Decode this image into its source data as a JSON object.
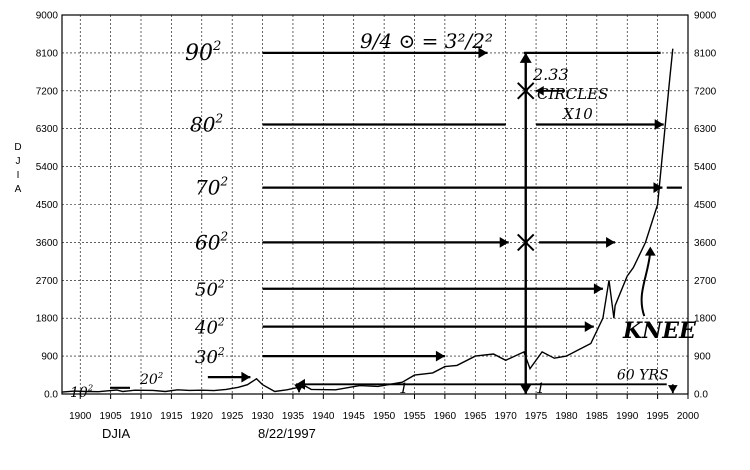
{
  "chart_data": {
    "type": "line",
    "ylabel": "DJIA",
    "xlabel_left": "DJIA",
    "date_label": "8/22/1997",
    "xlim": [
      1897,
      2000
    ],
    "ylim": [
      0,
      9000
    ],
    "yticks": [
      "0.0",
      "900",
      "1800",
      "2700",
      "3600",
      "4500",
      "5400",
      "6300",
      "7200",
      "8100",
      "9000"
    ],
    "xticks": [
      "1900",
      "1905",
      "1910",
      "1915",
      "1920",
      "1925",
      "1930",
      "1935",
      "1940",
      "1945",
      "1950",
      "1955",
      "1960",
      "1965",
      "1970",
      "1975",
      "1980",
      "1985",
      "1990",
      "1995",
      "2000"
    ],
    "grid": true,
    "series": [
      {
        "x": [
          1897,
          1899,
          1901,
          1903,
          1905,
          1906,
          1907,
          1909,
          1912,
          1914,
          1916,
          1918,
          1920,
          1922,
          1924,
          1926,
          1927.5,
          1929,
          1930,
          1932,
          1934,
          1937,
          1938,
          1942,
          1946,
          1949,
          1953,
          1955,
          1958,
          1960,
          1962,
          1965,
          1968,
          1970,
          1973,
          1974,
          1976,
          1978,
          1980,
          1982,
          1984,
          1986,
          1987,
          1987.8,
          1988,
          1990,
          1991,
          1993,
          1995,
          1996,
          1997,
          1997.5
        ],
        "y": [
          45,
          70,
          60,
          55,
          80,
          95,
          60,
          90,
          85,
          60,
          100,
          85,
          90,
          80,
          110,
          160,
          220,
          360,
          220,
          60,
          100,
          190,
          110,
          100,
          200,
          180,
          280,
          450,
          500,
          650,
          680,
          900,
          950,
          800,
          1000,
          600,
          1000,
          850,
          900,
          1050,
          1200,
          1800,
          2700,
          1800,
          2100,
          2800,
          3000,
          3600,
          4500,
          6000,
          7500,
          8200
        ]
      }
    ],
    "annotations": {
      "squares": [
        {
          "base": "10",
          "exp": "2",
          "value": 100
        },
        {
          "base": "20",
          "exp": "2",
          "value": 400
        },
        {
          "base": "30",
          "exp": "2",
          "value": 900
        },
        {
          "base": "40",
          "exp": "2",
          "value": 1600
        },
        {
          "base": "50",
          "exp": "2",
          "value": 2500
        },
        {
          "base": "60",
          "exp": "2",
          "value": 3600
        },
        {
          "base": "70",
          "exp": "2",
          "value": 4900
        },
        {
          "base": "80",
          "exp": "2",
          "value": 6400
        },
        {
          "base": "90",
          "exp": "2",
          "value": 8100
        }
      ],
      "formula": "9/4 ⊙ = 3²/2²",
      "circles_value": "2.33",
      "circles_label": "CIRCLES",
      "circles_factor": "X10",
      "knee": "KNEE",
      "years_label": "60 YRS",
      "tick_marks": [
        "1",
        "1"
      ]
    }
  }
}
